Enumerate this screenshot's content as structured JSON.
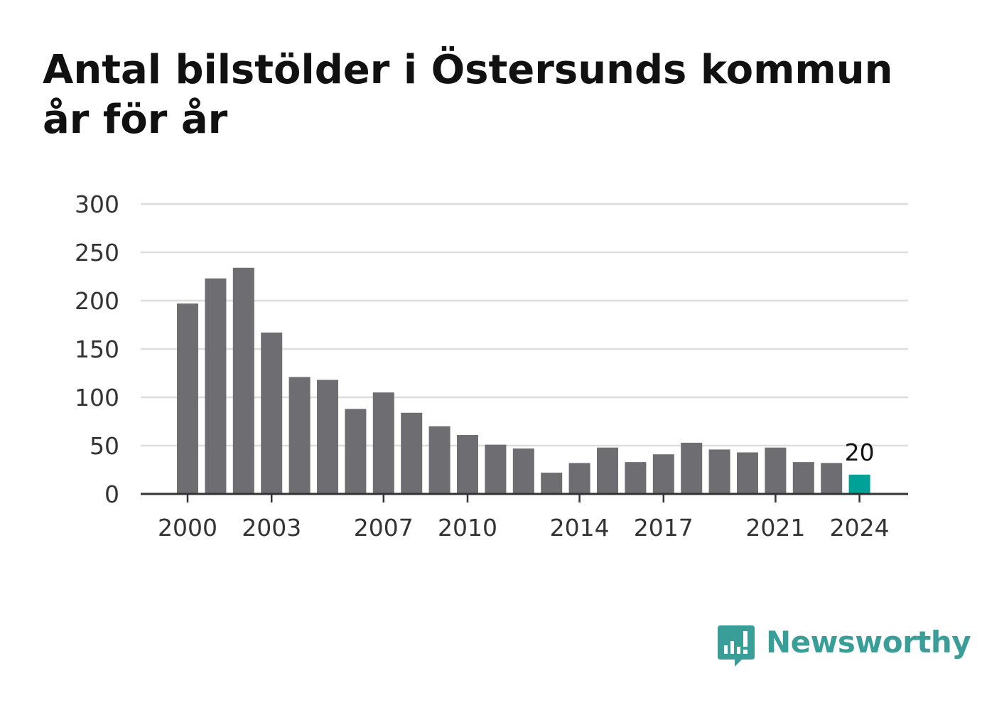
{
  "colors": {
    "bar": "#6e6d72",
    "highlight": "#00a196",
    "grid": "#dddddd",
    "axis": "#333333",
    "brand": "#3a9e98"
  },
  "chart_data": {
    "type": "bar",
    "title": "Antal bilstölder i Östersunds kommun år för år",
    "x": [
      2000,
      2001,
      2002,
      2003,
      2004,
      2005,
      2006,
      2007,
      2008,
      2009,
      2010,
      2011,
      2012,
      2013,
      2014,
      2015,
      2016,
      2017,
      2018,
      2019,
      2020,
      2021,
      2022,
      2023,
      2024
    ],
    "values": [
      197,
      223,
      234,
      167,
      121,
      118,
      88,
      105,
      84,
      70,
      61,
      51,
      47,
      22,
      32,
      48,
      33,
      41,
      53,
      46,
      43,
      48,
      33,
      32,
      20
    ],
    "xticks": [
      2000,
      2003,
      2007,
      2010,
      2014,
      2017,
      2021,
      2024
    ],
    "yticks": [
      0,
      50,
      100,
      150,
      200,
      250,
      300
    ],
    "ylim": [
      0,
      300
    ],
    "grid": true,
    "highlight_index": 24,
    "annotations": [
      {
        "x": 2024,
        "label": "20"
      }
    ]
  },
  "logo": {
    "icon": "newsworthy-logo-icon",
    "text": "Newsworthy"
  }
}
